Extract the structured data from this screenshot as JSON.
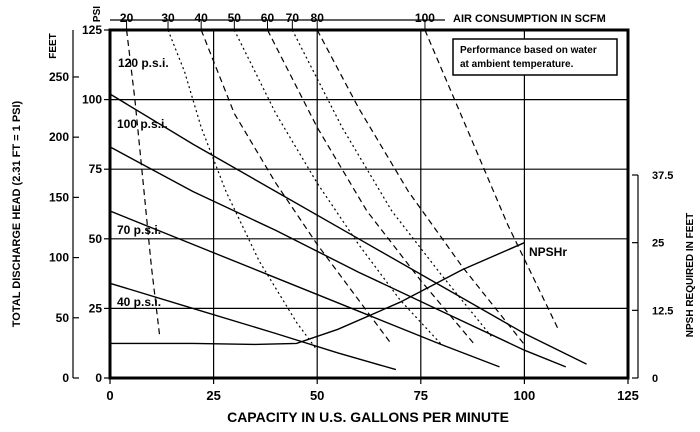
{
  "chart_data": {
    "type": "line",
    "title": "",
    "xlabel": "CAPACITY IN U.S. GALLONS PER MINUTE",
    "xlim": [
      0,
      125
    ],
    "x_ticks": [
      0,
      25,
      50,
      75,
      100,
      125
    ],
    "ylabel_left": "TOTAL DISCHARGE HEAD (2.31 FT = 1 PSI)",
    "left_feet_axis": {
      "label": "FEET",
      "range": [
        0,
        289
      ],
      "ticks": [
        0,
        50,
        100,
        150,
        200,
        250
      ]
    },
    "left_psi_axis": {
      "label": "PSI",
      "range": [
        0,
        125
      ],
      "ticks": [
        0,
        25,
        50,
        75,
        100,
        125
      ]
    },
    "right_axis": {
      "label": "NPSH REQUIRED IN FEET",
      "range": [
        0,
        37.5
      ],
      "ticks": [
        0,
        12.5,
        25,
        37.5
      ],
      "tick_labels": [
        "0",
        "12.5",
        "25",
        "37.5"
      ]
    },
    "top_axis": {
      "label": "AIR CONSUMPTION IN SCFM",
      "tick_labels": [
        "20",
        "30",
        "40",
        "50",
        "60",
        "70",
        "80",
        "100"
      ]
    },
    "note": [
      "Performance based on water",
      "at ambient temperature."
    ],
    "grid": true,
    "series": [
      {
        "name": "120 p.s.i.",
        "style": "solid",
        "x": [
          0,
          20,
          40,
          60,
          80,
          100,
          115
        ],
        "y": [
          102,
          84,
          67,
          50,
          33,
          16,
          5
        ]
      },
      {
        "name": "100 p.s.i.",
        "style": "solid",
        "x": [
          0,
          20,
          40,
          60,
          80,
          100,
          110
        ],
        "y": [
          83,
          67,
          53,
          38,
          24,
          10,
          4
        ]
      },
      {
        "name": "70 p.s.i.",
        "style": "solid",
        "x": [
          0,
          20,
          40,
          60,
          80,
          94
        ],
        "y": [
          60,
          48,
          36,
          24,
          12,
          4
        ]
      },
      {
        "name": "40 p.s.i.",
        "style": "solid",
        "x": [
          0,
          20,
          40,
          55,
          69
        ],
        "y": [
          34,
          25,
          16,
          9,
          3
        ]
      },
      {
        "name": "NPSHr",
        "style": "solid",
        "axis": "right",
        "x": [
          0,
          20,
          35,
          45,
          55,
          70,
          85,
          100
        ],
        "y": [
          6.4,
          6.4,
          6.2,
          6.4,
          9,
          14,
          20,
          25
        ]
      },
      {
        "name": "20",
        "style": "dashed",
        "x": [
          4,
          6,
          8,
          10,
          12
        ],
        "y": [
          125,
          100,
          70,
          40,
          15
        ]
      },
      {
        "name": "30",
        "style": "dotted",
        "x": [
          14,
          18,
          22,
          28,
          36,
          45,
          50
        ],
        "y": [
          125,
          110,
          90,
          67,
          42,
          20,
          10
        ]
      },
      {
        "name": "40",
        "style": "dashed",
        "x": [
          22,
          30,
          40,
          50,
          60,
          68
        ],
        "y": [
          125,
          95,
          70,
          48,
          28,
          12
        ]
      },
      {
        "name": "50",
        "style": "dotted",
        "x": [
          30,
          40,
          50,
          60,
          70,
          80
        ],
        "y": [
          125,
          95,
          70,
          48,
          28,
          12
        ]
      },
      {
        "name": "60",
        "style": "dashed",
        "x": [
          38,
          50,
          62,
          75,
          88
        ],
        "y": [
          125,
          90,
          60,
          35,
          12
        ]
      },
      {
        "name": "70",
        "style": "dotted",
        "x": [
          44,
          56,
          68,
          80,
          92
        ],
        "y": [
          125,
          90,
          60,
          37,
          15
        ]
      },
      {
        "name": "80",
        "style": "dashed",
        "x": [
          50,
          60,
          72,
          85,
          100
        ],
        "y": [
          125,
          97,
          67,
          40,
          12
        ]
      },
      {
        "name": "100",
        "style": "dashed",
        "x": [
          76,
          86,
          96,
          108
        ],
        "y": [
          125,
          90,
          55,
          18
        ]
      }
    ]
  }
}
